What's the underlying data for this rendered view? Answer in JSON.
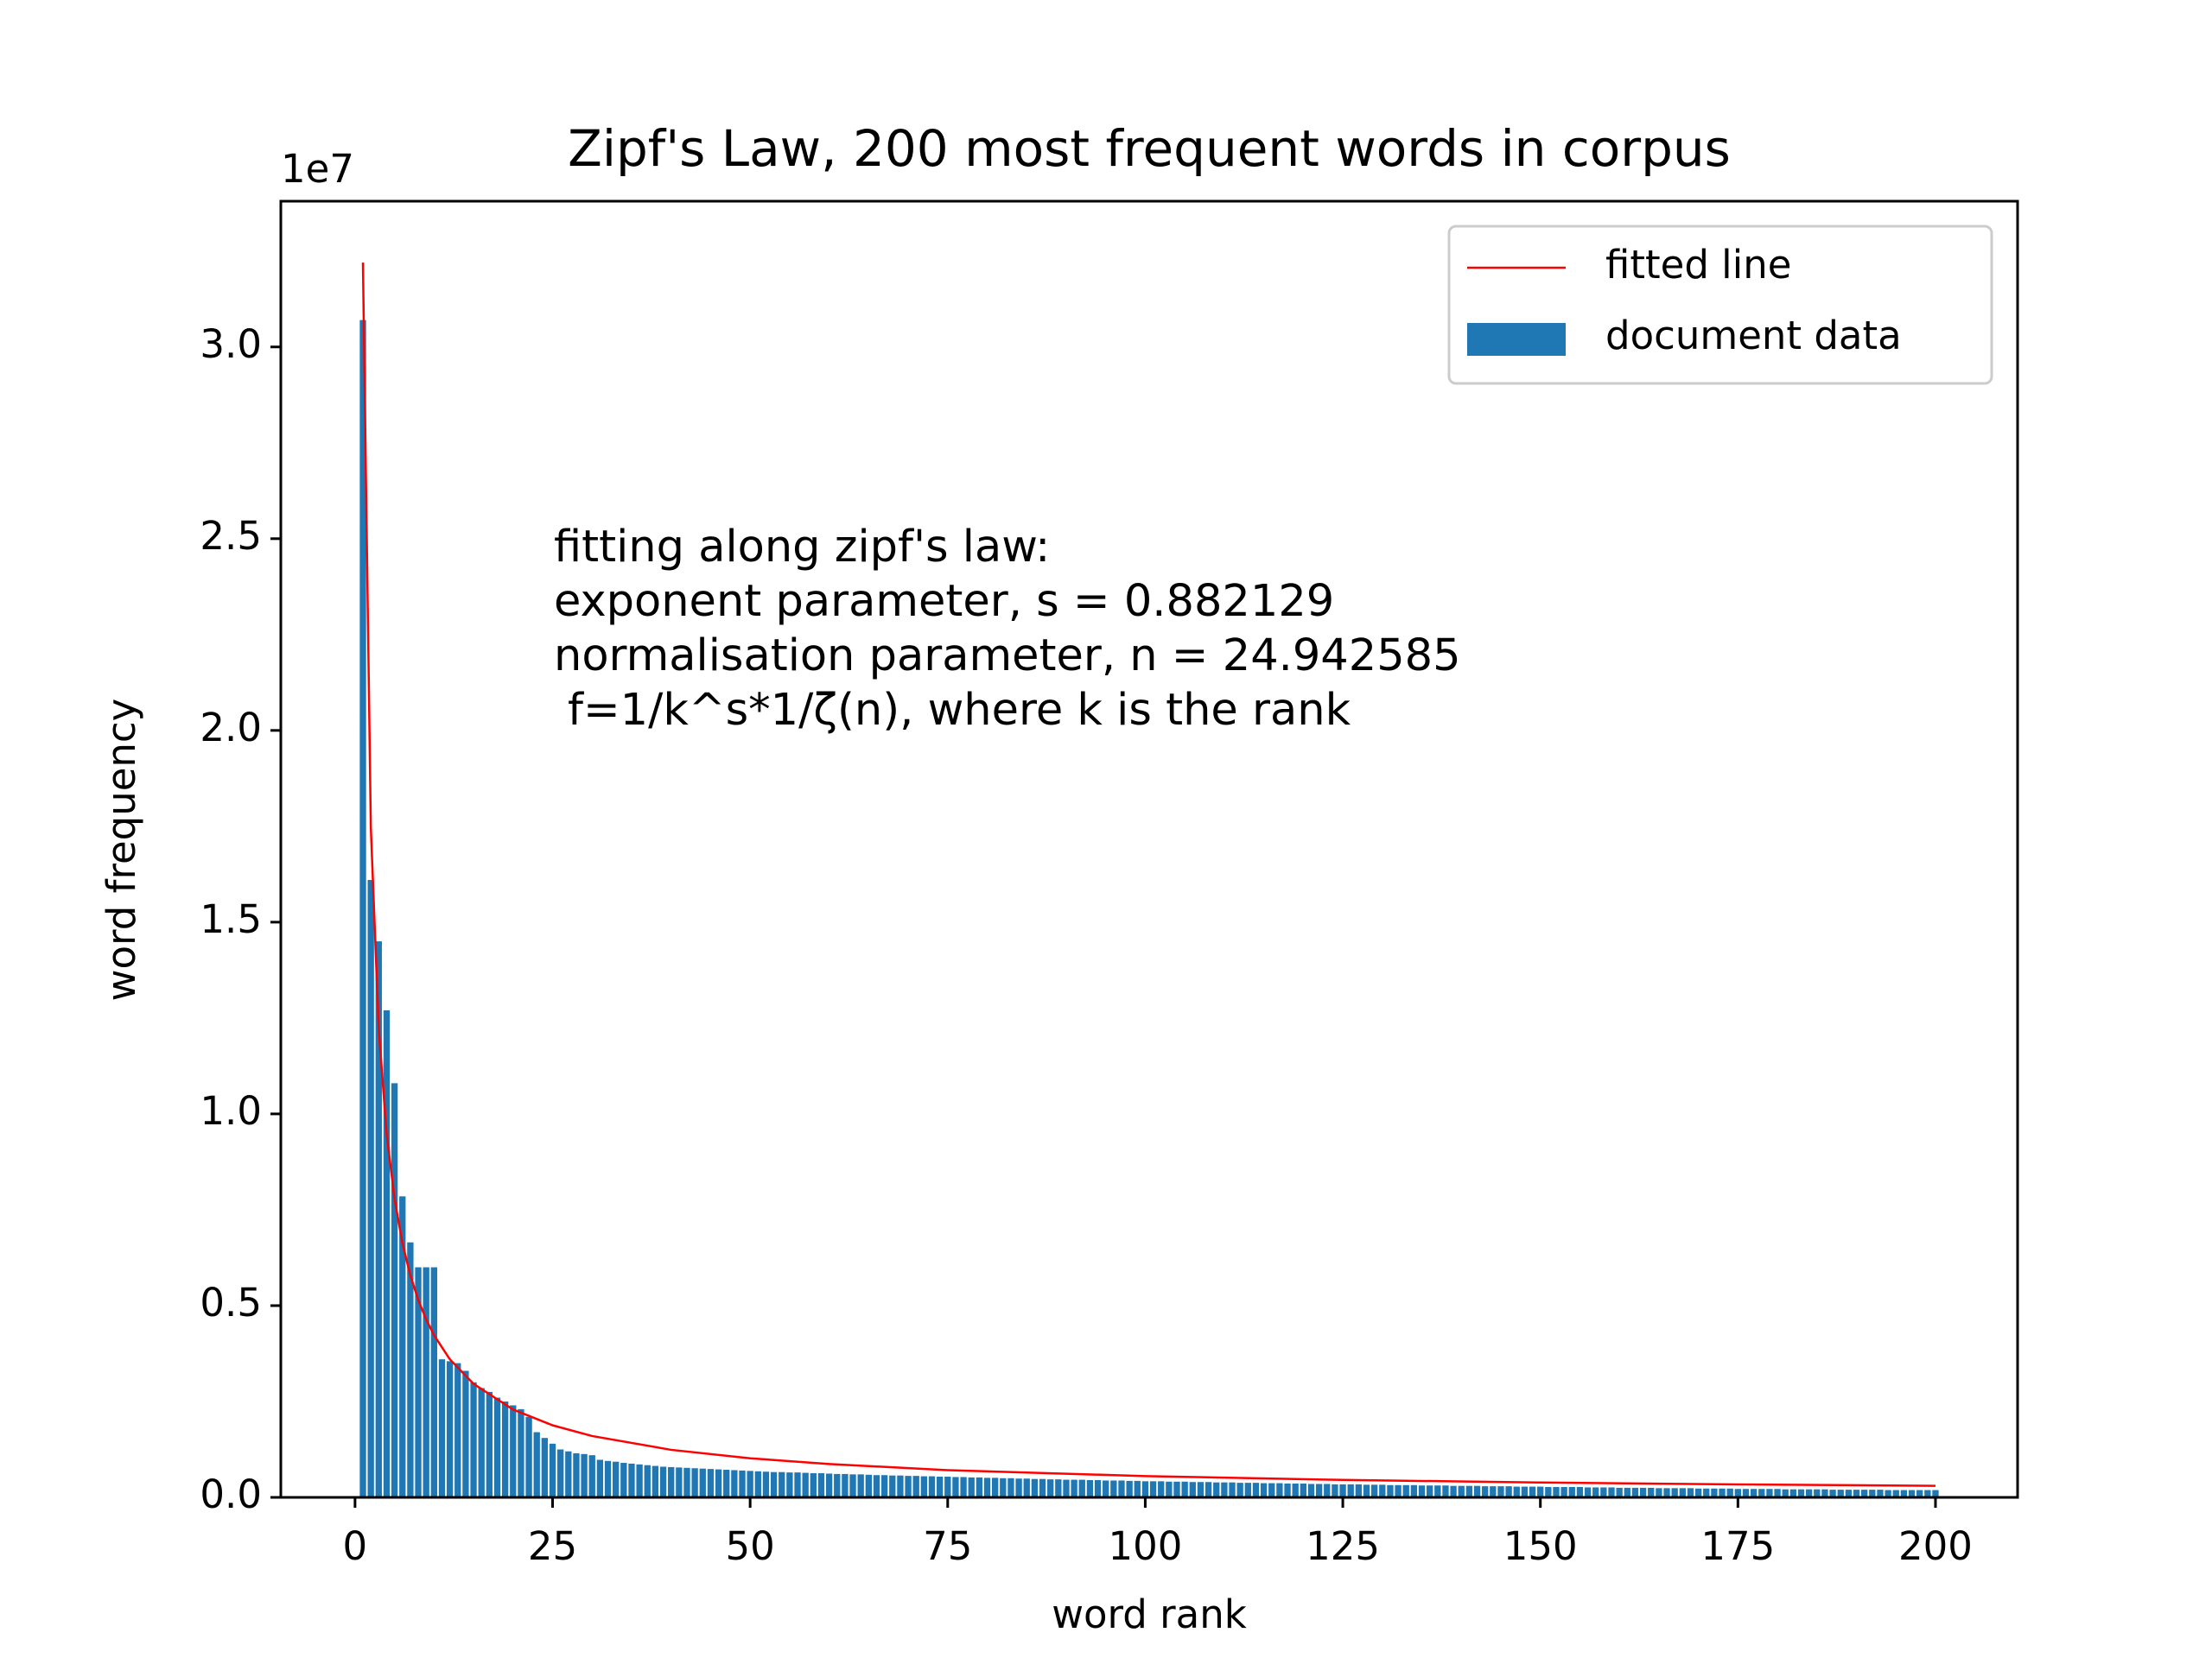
{
  "chart_data": {
    "type": "bar",
    "title": "Zipf's Law, 200 most frequent words in corpus",
    "xlabel": "word rank",
    "ylabel": "word frequency",
    "y_offset_label": "1e7",
    "xlim": [
      -9.39,
      210.39
    ],
    "ylim": [
      0,
      3.38
    ],
    "xticks": [
      0,
      25,
      50,
      75,
      100,
      125,
      150,
      175,
      200
    ],
    "yticks": [
      {
        "value": 0,
        "label": "0.0"
      },
      {
        "value": 0.5,
        "label": "0.5"
      },
      {
        "value": 1,
        "label": "1.0"
      },
      {
        "value": 1.5,
        "label": "1.5"
      },
      {
        "value": 2,
        "label": "2.0"
      },
      {
        "value": 2.5,
        "label": "2.5"
      },
      {
        "value": 3,
        "label": "3.0"
      }
    ],
    "legend": "upper right",
    "annotation": [
      "fitting along zipf's law:",
      "exponent parameter, s = 0.882129",
      "normalisation parameter, n = 24.942585",
      "f=1/k^s*1/ζ(n), where k is the rank"
    ],
    "series": [
      {
        "name": "fitted line",
        "type": "line",
        "color": "#ff0000",
        "x": [
          1,
          2,
          3,
          4,
          5,
          6,
          7,
          8,
          9,
          10,
          12,
          15,
          20,
          25,
          30,
          40,
          50,
          60,
          75,
          100,
          125,
          150,
          175,
          200
        ],
        "values": [
          3.22,
          1.747,
          1.222,
          0.948,
          0.779,
          0.663,
          0.579,
          0.515,
          0.464,
          0.423,
          0.36,
          0.296,
          0.229,
          0.188,
          0.16,
          0.124,
          0.102,
          0.087,
          0.071,
          0.0555,
          0.0455,
          0.0388,
          0.0338,
          0.0301
        ]
      },
      {
        "name": "document data",
        "type": "bar",
        "color": "#1f77b4",
        "width": 0.8,
        "x": [
          1,
          2,
          3,
          4,
          5,
          6,
          7,
          8,
          9,
          10,
          11,
          12,
          13,
          14,
          15,
          16,
          17,
          18,
          19,
          20,
          21,
          22,
          23,
          24,
          25,
          26,
          27,
          28,
          29,
          30,
          31,
          32,
          33,
          34,
          35,
          36,
          37,
          38,
          39,
          40,
          41,
          42,
          43,
          44,
          45,
          46,
          47,
          48,
          49,
          50,
          51,
          52,
          53,
          54,
          55,
          56,
          57,
          58,
          59,
          60,
          61,
          62,
          63,
          64,
          65,
          66,
          67,
          68,
          69,
          70,
          71,
          72,
          73,
          74,
          75,
          76,
          77,
          78,
          79,
          80,
          81,
          82,
          83,
          84,
          85,
          86,
          87,
          88,
          89,
          90,
          91,
          92,
          93,
          94,
          95,
          96,
          97,
          98,
          99,
          100,
          101,
          102,
          103,
          104,
          105,
          106,
          107,
          108,
          109,
          110,
          111,
          112,
          113,
          114,
          115,
          116,
          117,
          118,
          119,
          120,
          121,
          122,
          123,
          124,
          125,
          126,
          127,
          128,
          129,
          130,
          131,
          132,
          133,
          134,
          135,
          136,
          137,
          138,
          139,
          140,
          141,
          142,
          143,
          144,
          145,
          146,
          147,
          148,
          149,
          150,
          151,
          152,
          153,
          154,
          155,
          156,
          157,
          158,
          159,
          160,
          161,
          162,
          163,
          164,
          165,
          166,
          167,
          168,
          169,
          170,
          171,
          172,
          173,
          174,
          175,
          176,
          177,
          178,
          179,
          180,
          181,
          182,
          183,
          184,
          185,
          186,
          187,
          188,
          189,
          190,
          191,
          192,
          193,
          194,
          195,
          196,
          197,
          198,
          199,
          200
        ],
        "values": [
          3.07,
          1.61,
          1.45,
          1.27,
          1.08,
          0.785,
          0.665,
          0.6,
          0.6,
          0.6,
          0.36,
          0.355,
          0.35,
          0.33,
          0.3,
          0.285,
          0.275,
          0.26,
          0.25,
          0.24,
          0.23,
          0.21,
          0.17,
          0.155,
          0.14,
          0.125,
          0.12,
          0.115,
          0.113,
          0.11,
          0.098,
          0.095,
          0.093,
          0.09,
          0.088,
          0.086,
          0.084,
          0.082,
          0.08,
          0.079,
          0.078,
          0.077,
          0.076,
          0.075,
          0.074,
          0.073,
          0.072,
          0.071,
          0.07,
          0.069,
          0.068,
          0.067,
          0.066,
          0.066,
          0.065,
          0.065,
          0.064,
          0.063,
          0.063,
          0.062,
          0.061,
          0.061,
          0.06,
          0.06,
          0.059,
          0.058,
          0.058,
          0.057,
          0.057,
          0.056,
          0.056,
          0.055,
          0.055,
          0.054,
          0.054,
          0.053,
          0.053,
          0.052,
          0.052,
          0.051,
          0.051,
          0.05,
          0.05,
          0.049,
          0.049,
          0.048,
          0.048,
          0.047,
          0.047,
          0.046,
          0.046,
          0.046,
          0.045,
          0.045,
          0.044,
          0.044,
          0.044,
          0.043,
          0.043,
          0.042,
          0.042,
          0.042,
          0.041,
          0.041,
          0.041,
          0.04,
          0.04,
          0.04,
          0.039,
          0.039,
          0.039,
          0.038,
          0.038,
          0.038,
          0.037,
          0.037,
          0.037,
          0.036,
          0.036,
          0.036,
          0.035,
          0.035,
          0.035,
          0.034,
          0.034,
          0.034,
          0.034,
          0.033,
          0.033,
          0.033,
          0.032,
          0.032,
          0.032,
          0.032,
          0.031,
          0.031,
          0.031,
          0.031,
          0.03,
          0.03,
          0.03,
          0.03,
          0.029,
          0.029,
          0.029,
          0.029,
          0.028,
          0.028,
          0.028,
          0.028,
          0.027,
          0.027,
          0.027,
          0.027,
          0.027,
          0.026,
          0.026,
          0.026,
          0.026,
          0.025,
          0.025,
          0.025,
          0.025,
          0.025,
          0.024,
          0.024,
          0.024,
          0.024,
          0.024,
          0.023,
          0.023,
          0.023,
          0.023,
          0.023,
          0.022,
          0.022,
          0.022,
          0.022,
          0.022,
          0.022,
          0.021,
          0.021,
          0.021,
          0.021,
          0.021,
          0.021,
          0.02,
          0.02,
          0.02,
          0.02,
          0.02,
          0.02,
          0.02,
          0.019,
          0.019,
          0.019,
          0.019,
          0.019,
          0.019,
          0.019
        ]
      }
    ]
  }
}
